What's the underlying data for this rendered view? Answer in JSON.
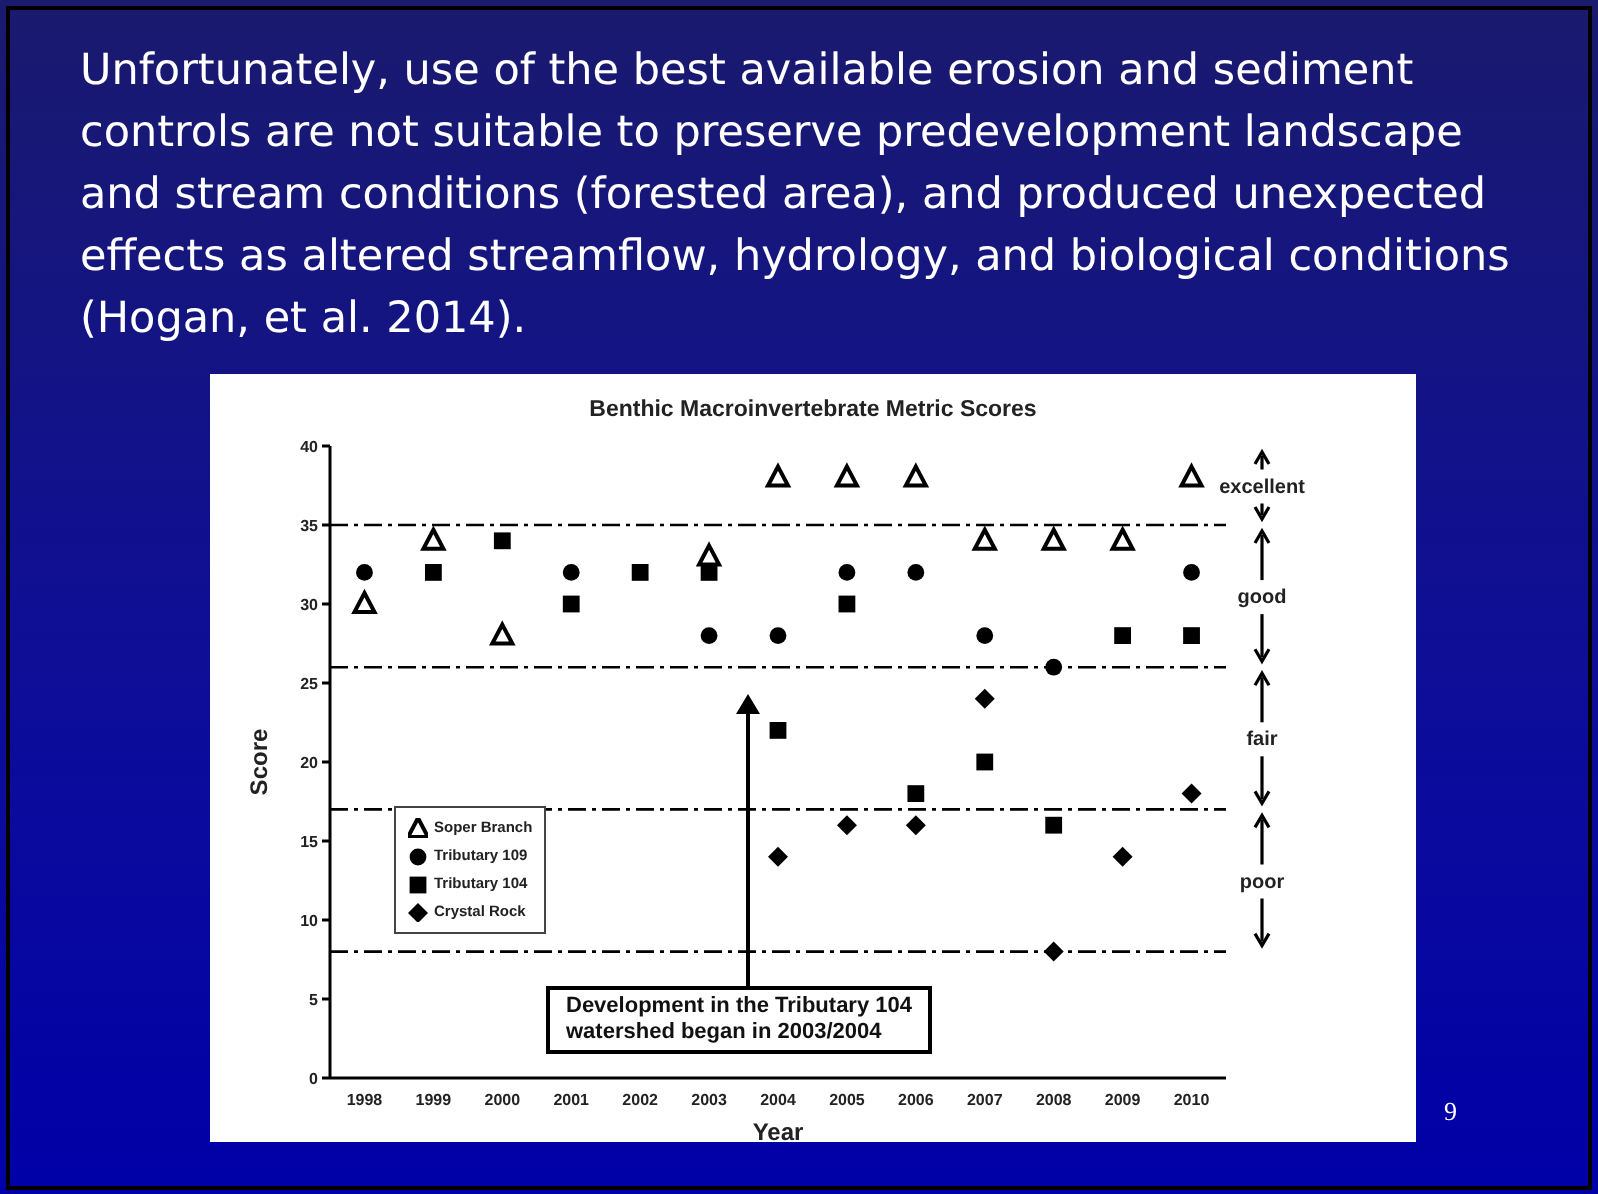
{
  "chart_data": {
    "type": "scatter",
    "title": "Benthic Macroinvertebrate Metric Scores",
    "xlabel": "Year",
    "ylabel": "Score",
    "categories": [
      "1998",
      "1999",
      "2000",
      "2001",
      "2002",
      "2003",
      "2004",
      "2005",
      "2006",
      "2007",
      "2008",
      "2009",
      "2010"
    ],
    "series": [
      {
        "name": "Soper Branch",
        "color": "#000000",
        "marker": "triangle",
        "values": [
          30,
          34,
          28,
          null,
          null,
          33,
          38,
          38,
          38,
          34,
          34,
          34,
          38
        ]
      },
      {
        "name": "Tributary 109",
        "color": "#000000",
        "marker": "circle",
        "values": [
          32,
          null,
          null,
          32,
          null,
          28,
          28,
          32,
          32,
          28,
          26,
          null,
          32
        ]
      },
      {
        "name": "Tributary 104",
        "color": "#000000",
        "marker": "square",
        "values": [
          null,
          32,
          34,
          30,
          32,
          32,
          22,
          30,
          18,
          20,
          16,
          28,
          28
        ]
      },
      {
        "name": "Crystal Rock",
        "color": "#000000",
        "marker": "diamond",
        "values": [
          null,
          null,
          null,
          null,
          null,
          null,
          14,
          16,
          16,
          24,
          8,
          14,
          18
        ]
      }
    ],
    "ylim": [
      0,
      40
    ],
    "yticks": [
      0,
      5,
      10,
      15,
      20,
      25,
      30,
      35,
      40
    ],
    "ref_lines": [
      {
        "axis": "y",
        "value": 35,
        "line_style": "dashed",
        "color": "#000000"
      },
      {
        "axis": "y",
        "value": 26,
        "line_style": "dashed",
        "color": "#000000"
      },
      {
        "axis": "y",
        "value": 17,
        "line_style": "dashed",
        "color": "#000000"
      },
      {
        "axis": "y",
        "value": 8,
        "line_style": "dashed",
        "color": "#000000"
      }
    ],
    "legend": "left",
    "annotations": [
      "Unfortunately, use of the best available erosion and sediment\ncontrols are not suitable to preserve predevelopment landscape\nand stream conditions (forested area), and produced unexpected\neffects as altered streamflow, hydrology, and biological conditions\n(Hogan, et al. 2014).",
      "Development in the Tributary 104\nwatershed began in 2003/2004",
      "9",
      "excellent",
      "good",
      "fair",
      "poor"
    ]
  }
}
